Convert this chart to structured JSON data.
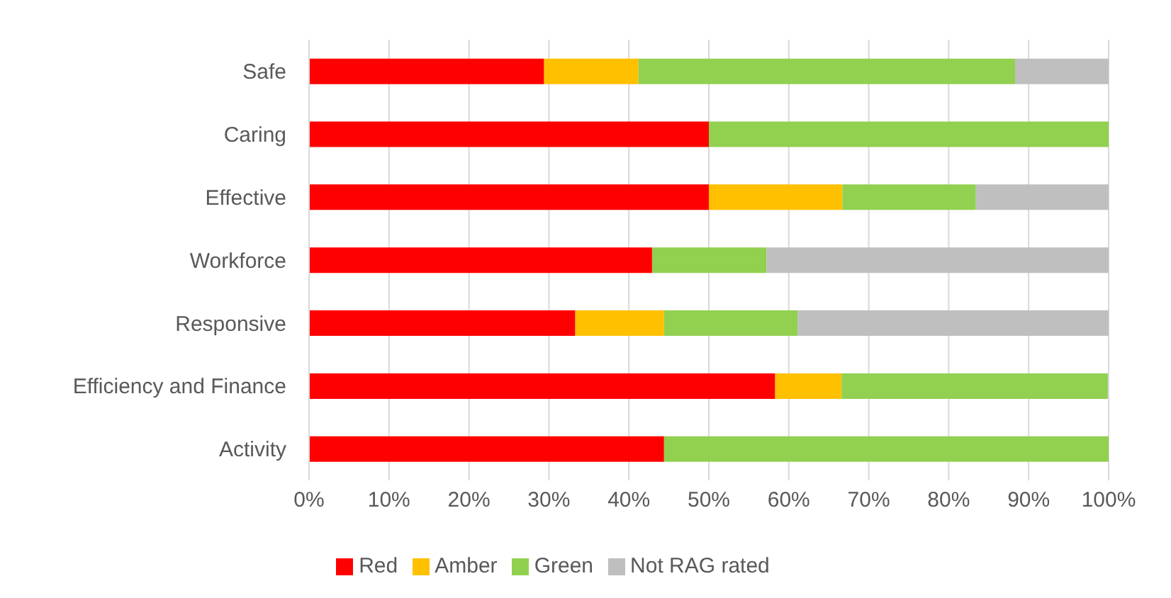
{
  "chart_data": {
    "type": "bar",
    "orientation": "horizontal",
    "stacked": true,
    "categories": [
      "Safe",
      "Caring",
      "Effective",
      "Workforce",
      "Responsive",
      "Efficiency and Finance",
      "Activity"
    ],
    "series": [
      {
        "name": "Red",
        "color": "#ff0000",
        "values": [
          29.4,
          50,
          50,
          42.9,
          33.3,
          58.3,
          44.4
        ]
      },
      {
        "name": "Amber",
        "color": "#ffc000",
        "values": [
          11.8,
          null,
          16.7,
          null,
          11.1,
          8.3,
          null
        ]
      },
      {
        "name": "Green",
        "color": "#92d050",
        "values": [
          47.1,
          50,
          16.7,
          14.3,
          16.7,
          33.3,
          55.6
        ]
      },
      {
        "name": "Not RAG rated",
        "color": "#bfbfbf",
        "values": [
          11.8,
          null,
          16.7,
          42.9,
          38.9,
          null,
          null
        ]
      }
    ],
    "xlim": [
      0,
      100
    ],
    "xticks": [
      {
        "value": 0,
        "label": "0%"
      },
      {
        "value": 10,
        "label": "10%"
      },
      {
        "value": 20,
        "label": "20%"
      },
      {
        "value": 30,
        "label": "30%"
      },
      {
        "value": 40,
        "label": "40%"
      },
      {
        "value": 50,
        "label": "50%"
      },
      {
        "value": 60,
        "label": "60%"
      },
      {
        "value": 70,
        "label": "70%"
      },
      {
        "value": 80,
        "label": "80%"
      },
      {
        "value": 90,
        "label": "90%"
      },
      {
        "value": 100,
        "label": "100%"
      }
    ],
    "grid": "x",
    "legend": "bottom"
  }
}
